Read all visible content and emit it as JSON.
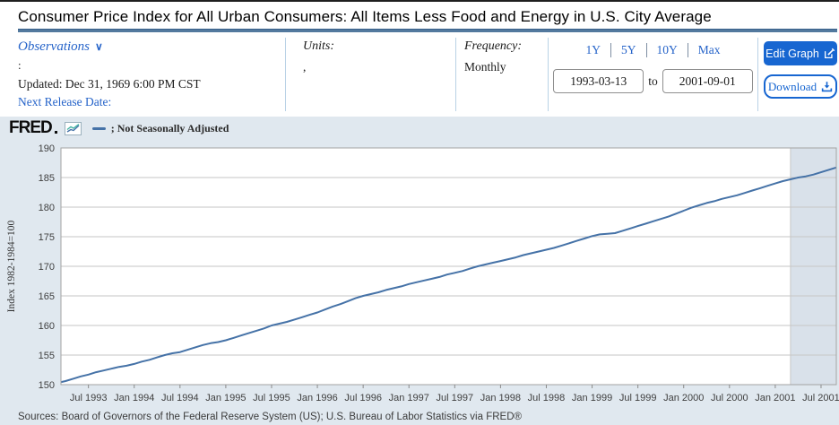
{
  "page": {
    "title": "Consumer Price Index for All Urban Consumers: All Items Less Food and Energy in U.S. City Average"
  },
  "controls": {
    "observations": {
      "label": "Observations",
      "value_line": ":",
      "updated": "Updated: Dec 31, 1969 6:00 PM CST",
      "next_release": "Next Release Date:"
    },
    "units": {
      "label": "Units:",
      "value": ","
    },
    "frequency": {
      "label": "Frequency:",
      "value": "Monthly"
    },
    "range": {
      "presets": [
        "1Y",
        "5Y",
        "10Y",
        "Max"
      ],
      "start": "1993-03-13",
      "to_label": "to",
      "end": "2001-09-01"
    },
    "actions": {
      "edit_graph": "Edit Graph",
      "download": "Download"
    }
  },
  "chart_header": {
    "brand": "FRED",
    "legend_label": "; Not Seasonally Adjusted"
  },
  "footer": {
    "sources": "Sources: Board of Governors of the Federal Reserve System (US); U.S. Bureau of Labor Statistics via FRED®"
  },
  "icons": {
    "chevron_down": "∨"
  },
  "colors": {
    "accent_blue": "#1766d1",
    "link_blue": "#2563c9",
    "series_line": "#4572a7",
    "chart_bg": "#e0e8ef",
    "recession_band": "#d9e1ea",
    "gridline": "#c6c6c6",
    "plot_border": "#a3a3a3",
    "title_rule": "#53799e"
  },
  "chart_data": {
    "type": "line",
    "title": "Consumer Price Index for All Urban Consumers: All Items Less Food and Energy in U.S. City Average",
    "legend": "; Not Seasonally Adjusted",
    "ylabel": "Index 1982-1984=100",
    "frequency": "Monthly",
    "x_start": "1993-03",
    "x_end": "2001-09",
    "xlim": [
      "1993-03-13",
      "2001-09-01"
    ],
    "ylim": [
      150,
      190
    ],
    "yticks": [
      150,
      155,
      160,
      165,
      170,
      175,
      180,
      185,
      190
    ],
    "x_tick_labels": [
      "Jul 1993",
      "Jan 1994",
      "Jul 1994",
      "Jan 1995",
      "Jul 1995",
      "Jan 1996",
      "Jul 1996",
      "Jan 1997",
      "Jul 1997",
      "Jan 1998",
      "Jul 1998",
      "Jan 1999",
      "Jul 1999",
      "Jan 2000",
      "Jul 2000",
      "Jan 2001",
      "Jul 2001"
    ],
    "grid": "horizontal",
    "legend_position": "top-left",
    "recession_bands": [
      {
        "start": "2001-03",
        "end": "2001-09"
      }
    ],
    "values": [
      150.3,
      150.6,
      151.0,
      151.4,
      151.7,
      152.1,
      152.4,
      152.7,
      153.0,
      153.2,
      153.5,
      153.9,
      154.2,
      154.6,
      155.0,
      155.3,
      155.5,
      155.9,
      156.3,
      156.7,
      157.0,
      157.2,
      157.5,
      157.9,
      158.3,
      158.7,
      159.1,
      159.5,
      160.0,
      160.3,
      160.6,
      161.0,
      161.4,
      161.8,
      162.2,
      162.7,
      163.2,
      163.6,
      164.1,
      164.6,
      165.0,
      165.3,
      165.6,
      166.0,
      166.3,
      166.6,
      167.0,
      167.3,
      167.6,
      167.9,
      168.2,
      168.6,
      168.9,
      169.2,
      169.6,
      170.0,
      170.3,
      170.6,
      170.9,
      171.2,
      171.5,
      171.9,
      172.2,
      172.5,
      172.8,
      173.1,
      173.5,
      173.9,
      174.3,
      174.7,
      175.1,
      175.4,
      175.5,
      175.6,
      176.0,
      176.4,
      176.8,
      177.2,
      177.6,
      178.0,
      178.4,
      178.9,
      179.4,
      179.9,
      180.3,
      180.7,
      181.0,
      181.4,
      181.7,
      182.0,
      182.4,
      182.8,
      183.2,
      183.6,
      184.0,
      184.4,
      184.7,
      185.0,
      185.2,
      185.5,
      185.9,
      186.3,
      186.7
    ]
  }
}
